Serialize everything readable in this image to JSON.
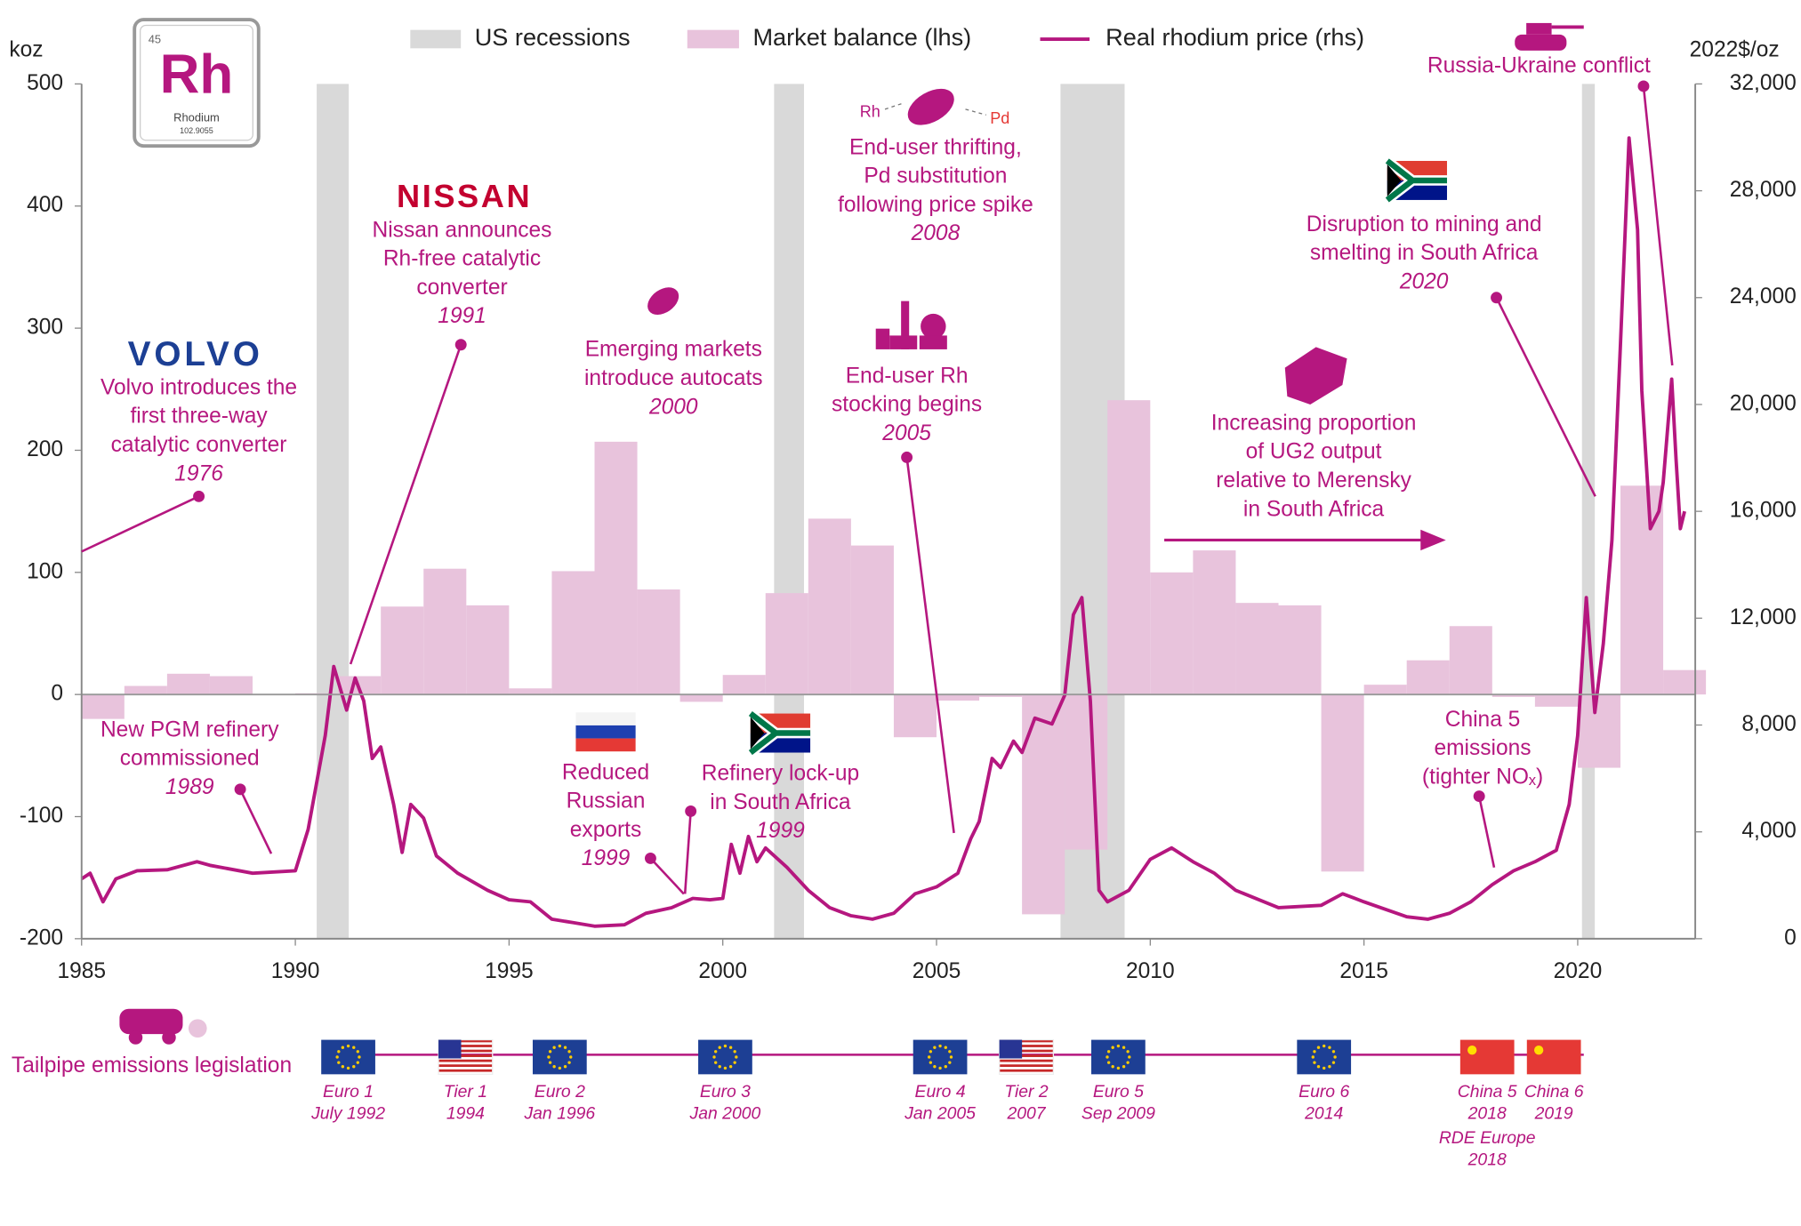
{
  "chart_data": {
    "type": "bar",
    "ylabel": "koz",
    "y2label": "2022$/oz",
    "xlim": [
      1985,
      2022.75
    ],
    "xticks": [
      1985,
      1990,
      1995,
      2000,
      2005,
      2010,
      2015,
      2020
    ],
    "ylim": [
      -200,
      500
    ],
    "yticks": [
      -200,
      -100,
      0,
      100,
      200,
      300,
      400,
      500
    ],
    "y2lim": [
      0,
      32000
    ],
    "y2ticks": [
      0,
      {
        "value": 4000,
        "label": "4,000"
      },
      {
        "value": 8000,
        "label": "8,000"
      },
      {
        "value": 12000,
        "label": "12,000"
      },
      {
        "value": 16000,
        "label": "16,000"
      },
      {
        "value": 20000,
        "label": "20,000"
      },
      {
        "value": 24000,
        "label": "24,000"
      },
      {
        "value": 28000,
        "label": "28,000"
      },
      {
        "value": 32000,
        "label": "32,000"
      }
    ],
    "recessions": {
      "name": "US recessions",
      "color": "#d9d9d9",
      "periods": [
        [
          1990.5,
          1991.25
        ],
        [
          2001.2,
          2001.9
        ],
        [
          2007.9,
          2009.4
        ],
        [
          2020.1,
          2020.4
        ]
      ]
    },
    "series": [
      {
        "name": "Market balance (lhs)",
        "type": "bar",
        "color": "#e8c3dc",
        "x": [
          1985,
          1986,
          1987,
          1988,
          1989,
          1990,
          1991,
          1992,
          1993,
          1994,
          1995,
          1996,
          1997,
          1998,
          1999,
          2000,
          2001,
          2002,
          2003,
          2004,
          2005,
          2006,
          2007,
          2008,
          2009,
          2010,
          2011,
          2012,
          2013,
          2014,
          2015,
          2016,
          2017,
          2018,
          2019,
          2020,
          2021,
          2022
        ],
        "values": [
          -20,
          7,
          17,
          15,
          0,
          1,
          15,
          72,
          103,
          73,
          5,
          101,
          207,
          86,
          -6,
          16,
          83,
          144,
          122,
          -35,
          -5,
          -2,
          -180,
          -127,
          241,
          100,
          118,
          75,
          73,
          -145,
          8,
          28,
          56,
          -2,
          -10,
          -60,
          171,
          20
        ]
      },
      {
        "name": "Real rhodium price (rhs)",
        "type": "line",
        "axis": "y2",
        "color": "#b5177f",
        "x": [
          1985.0,
          1985.2,
          1985.5,
          1985.8,
          1986.3,
          1987.0,
          1987.7,
          1988.0,
          1989.0,
          1990.0,
          1990.3,
          1990.7,
          1990.9,
          1991.2,
          1991.4,
          1991.6,
          1991.8,
          1992.0,
          1992.3,
          1992.5,
          1992.7,
          1993.0,
          1993.3,
          1993.8,
          1994.5,
          1995.0,
          1995.5,
          1996.0,
          1996.5,
          1997.0,
          1997.7,
          1998.2,
          1998.8,
          1999.3,
          1999.7,
          2000.0,
          2000.2,
          2000.4,
          2000.6,
          2000.8,
          2001.0,
          2001.5,
          2002.0,
          2002.5,
          2003.0,
          2003.5,
          2004.0,
          2004.5,
          2005.0,
          2005.5,
          2005.8,
          2006.0,
          2006.3,
          2006.5,
          2006.8,
          2007.0,
          2007.3,
          2007.7,
          2008.0,
          2008.2,
          2008.4,
          2008.6,
          2008.8,
          2009.0,
          2009.5,
          2010.0,
          2010.5,
          2011.0,
          2011.5,
          2012.0,
          2013.0,
          2014.0,
          2014.5,
          2015.0,
          2016.0,
          2016.5,
          2017.0,
          2017.5,
          2018.0,
          2018.5,
          2019.0,
          2019.5,
          2019.8,
          2020.0,
          2020.2,
          2020.4,
          2020.6,
          2020.8,
          2021.0,
          2021.2,
          2021.4,
          2021.5,
          2021.7,
          2021.9,
          2022.0,
          2022.2,
          2022.3,
          2022.4,
          2022.5
        ],
        "values": [
          2240,
          2450,
          1380,
          2240,
          2540,
          2580,
          2880,
          2750,
          2450,
          2540,
          4090,
          7610,
          10190,
          8560,
          9760,
          8900,
          6750,
          7180,
          5030,
          3230,
          5030,
          4520,
          3100,
          2450,
          1810,
          1460,
          1380,
          730,
          600,
          470,
          520,
          950,
          1160,
          1510,
          1460,
          1510,
          3530,
          2450,
          3830,
          2880,
          3400,
          2670,
          1810,
          1160,
          860,
          730,
          950,
          1680,
          1940,
          2450,
          3740,
          4390,
          6750,
          6410,
          7400,
          6970,
          8260,
          8040,
          9120,
          12130,
          12770,
          8900,
          1810,
          1380,
          1810,
          2970,
          3400,
          2880,
          2450,
          1810,
          1160,
          1250,
          1680,
          1380,
          820,
          730,
          950,
          1380,
          2020,
          2540,
          2880,
          3310,
          5030,
          7610,
          12770,
          8470,
          11050,
          14920,
          22240,
          29980,
          26540,
          20520,
          15350,
          16000,
          17080,
          20950,
          17940,
          15350,
          16000
        ]
      }
    ],
    "annotations": [
      {
        "lines": [
          "Volvo introduces the",
          "first three-way",
          "catalytic converter"
        ],
        "year": "1976"
      },
      {
        "lines": [
          "Nissan announces",
          "Rh-free catalytic",
          "converter"
        ],
        "year": "1991"
      },
      {
        "lines": [
          "Emerging markets",
          "introduce autocats"
        ],
        "year": "2000"
      },
      {
        "lines": [
          "End-user thrifting,",
          "Pd substitution",
          "following price spike"
        ],
        "year": "2008"
      },
      {
        "lines": [
          "End-user Rh",
          "stocking begins"
        ],
        "year": "2005"
      },
      {
        "lines": [
          "Disruption to mining and",
          "smelting in South Africa"
        ],
        "year": "2020"
      },
      {
        "lines": [
          "Increasing proportion",
          "of UG2 output",
          "relative to Merensky",
          "in South Africa"
        ]
      },
      {
        "lines": [
          "Russia-Ukraine conflict"
        ]
      },
      {
        "lines": [
          "New PGM refinery",
          "commissioned"
        ],
        "year": "1989"
      },
      {
        "lines": [
          "Reduced",
          "Russian",
          "exports"
        ],
        "year": "1999"
      },
      {
        "lines": [
          "Refinery lock-up",
          "in South Africa"
        ],
        "year": "1999"
      },
      {
        "lines": [
          "China 5",
          "emissions",
          "(tighter NOₓ)"
        ]
      }
    ],
    "logos": {
      "volvo": "VOLVO",
      "nissan": "NISSAN"
    },
    "element": {
      "number": "45",
      "symbol": "Rh",
      "name": "Rhodium",
      "mass": "102.9055"
    },
    "icon_labels": [
      "Rh",
      "Pd"
    ],
    "legislation": {
      "title": "Tailpipe emissions legislation",
      "items": [
        {
          "name": "Euro 1",
          "date": "July 1992",
          "flag": "eu"
        },
        {
          "name": "Tier 1",
          "date": "1994",
          "flag": "us"
        },
        {
          "name": "Euro 2",
          "date": "Jan 1996",
          "flag": "eu"
        },
        {
          "name": "Euro 3",
          "date": "Jan 2000",
          "flag": "eu"
        },
        {
          "name": "Euro 4",
          "date": "Jan 2005",
          "flag": "eu"
        },
        {
          "name": "Tier 2",
          "date": "2007",
          "flag": "us"
        },
        {
          "name": "Euro 5",
          "date": "Sep 2009",
          "flag": "eu"
        },
        {
          "name": "Euro 6",
          "date": "2014",
          "flag": "eu"
        },
        {
          "name": "China 5",
          "date": "2018",
          "flag": "cn",
          "extra": [
            "RDE Europe",
            "2018"
          ]
        },
        {
          "name": "China 6",
          "date": "2019",
          "flag": "cn"
        }
      ]
    }
  }
}
